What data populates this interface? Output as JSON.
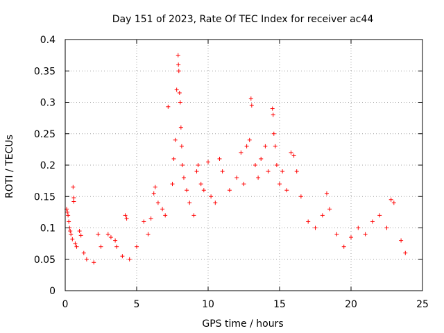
{
  "chart_data": {
    "type": "scatter",
    "title": "Day 151 of 2023, Rate Of TEC Index for receiver ac44",
    "xlabel": "GPS time / hours",
    "ylabel": "ROTI / TECUs",
    "xlim": [
      0,
      25
    ],
    "ylim": [
      0,
      0.4
    ],
    "xticks": [
      0,
      5,
      10,
      15,
      20,
      25
    ],
    "yticks": [
      0,
      0.05,
      0.1,
      0.15,
      0.2,
      0.25,
      0.3,
      0.35,
      0.4
    ],
    "xtick_labels": [
      "0",
      "5",
      "10",
      "15",
      "20",
      "25"
    ],
    "ytick_labels": [
      "0",
      "0.05",
      "0.1",
      "0.15",
      "0.2",
      "0.25",
      "0.3",
      "0.35",
      "0.4"
    ],
    "grid": true,
    "marker": "+",
    "color": "#ff0000",
    "series": [
      {
        "points": [
          [
            0.1,
            0.13
          ],
          [
            0.15,
            0.125
          ],
          [
            0.2,
            0.12
          ],
          [
            0.25,
            0.11
          ],
          [
            0.3,
            0.1
          ],
          [
            0.35,
            0.095
          ],
          [
            0.4,
            0.09
          ],
          [
            0.5,
            0.082
          ],
          [
            0.55,
            0.165
          ],
          [
            0.6,
            0.148
          ],
          [
            0.6,
            0.142
          ],
          [
            0.7,
            0.075
          ],
          [
            0.8,
            0.07
          ],
          [
            1.0,
            0.095
          ],
          [
            1.1,
            0.088
          ],
          [
            1.3,
            0.06
          ],
          [
            1.5,
            0.05
          ],
          [
            2.0,
            0.045
          ],
          [
            2.3,
            0.09
          ],
          [
            2.5,
            0.07
          ],
          [
            3.0,
            0.09
          ],
          [
            3.2,
            0.085
          ],
          [
            3.5,
            0.08
          ],
          [
            3.6,
            0.07
          ],
          [
            4.0,
            0.055
          ],
          [
            4.2,
            0.12
          ],
          [
            4.3,
            0.115
          ],
          [
            4.5,
            0.05
          ],
          [
            5.0,
            0.07
          ],
          [
            5.5,
            0.11
          ],
          [
            5.8,
            0.09
          ],
          [
            6.0,
            0.115
          ],
          [
            6.2,
            0.155
          ],
          [
            6.3,
            0.165
          ],
          [
            6.5,
            0.14
          ],
          [
            6.8,
            0.13
          ],
          [
            7.0,
            0.12
          ],
          [
            7.2,
            0.293
          ],
          [
            7.5,
            0.17
          ],
          [
            7.6,
            0.21
          ],
          [
            7.7,
            0.24
          ],
          [
            7.8,
            0.32
          ],
          [
            7.9,
            0.375
          ],
          [
            7.92,
            0.36
          ],
          [
            7.95,
            0.35
          ],
          [
            8.0,
            0.315
          ],
          [
            8.05,
            0.3
          ],
          [
            8.1,
            0.26
          ],
          [
            8.15,
            0.23
          ],
          [
            8.2,
            0.2
          ],
          [
            8.3,
            0.18
          ],
          [
            8.5,
            0.16
          ],
          [
            8.7,
            0.14
          ],
          [
            9.0,
            0.12
          ],
          [
            9.2,
            0.19
          ],
          [
            9.3,
            0.2
          ],
          [
            9.5,
            0.17
          ],
          [
            9.7,
            0.16
          ],
          [
            10.0,
            0.205
          ],
          [
            10.2,
            0.15
          ],
          [
            10.5,
            0.14
          ],
          [
            10.8,
            0.21
          ],
          [
            11.0,
            0.19
          ],
          [
            11.5,
            0.16
          ],
          [
            12.0,
            0.18
          ],
          [
            12.3,
            0.22
          ],
          [
            12.5,
            0.17
          ],
          [
            12.7,
            0.23
          ],
          [
            12.9,
            0.24
          ],
          [
            13.0,
            0.306
          ],
          [
            13.05,
            0.295
          ],
          [
            13.3,
            0.2
          ],
          [
            13.5,
            0.18
          ],
          [
            13.7,
            0.21
          ],
          [
            14.0,
            0.23
          ],
          [
            14.2,
            0.19
          ],
          [
            14.5,
            0.29
          ],
          [
            14.55,
            0.28
          ],
          [
            14.6,
            0.25
          ],
          [
            14.7,
            0.23
          ],
          [
            14.8,
            0.2
          ],
          [
            15.0,
            0.17
          ],
          [
            15.2,
            0.19
          ],
          [
            15.5,
            0.16
          ],
          [
            15.8,
            0.22
          ],
          [
            16.0,
            0.215
          ],
          [
            16.2,
            0.19
          ],
          [
            16.5,
            0.15
          ],
          [
            17.0,
            0.11
          ],
          [
            17.5,
            0.1
          ],
          [
            18.0,
            0.12
          ],
          [
            18.3,
            0.155
          ],
          [
            18.5,
            0.13
          ],
          [
            19.0,
            0.09
          ],
          [
            19.5,
            0.07
          ],
          [
            20.0,
            0.085
          ],
          [
            20.5,
            0.1
          ],
          [
            21.0,
            0.09
          ],
          [
            21.5,
            0.11
          ],
          [
            22.0,
            0.12
          ],
          [
            22.5,
            0.1
          ],
          [
            22.8,
            0.145
          ],
          [
            23.0,
            0.14
          ],
          [
            23.5,
            0.08
          ],
          [
            23.8,
            0.06
          ]
        ]
      }
    ]
  }
}
